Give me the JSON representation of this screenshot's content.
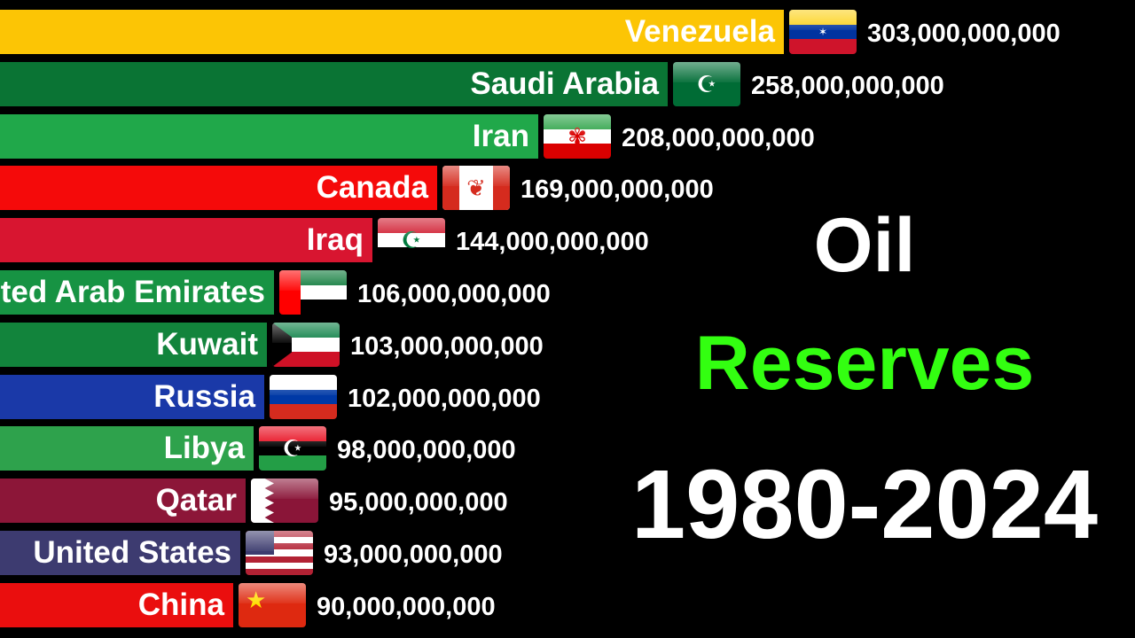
{
  "title": {
    "line1": "Oil",
    "line2": "Reserves",
    "line2_color": "#33ff11",
    "line3": "1980-2024"
  },
  "chart_data": {
    "type": "bar",
    "orientation": "horizontal",
    "categories": [
      "Venezuela",
      "Saudi Arabia",
      "Iran",
      "Canada",
      "Iraq",
      "United Arab Emirates",
      "Kuwait",
      "Russia",
      "Libya",
      "Qatar",
      "United States",
      "China"
    ],
    "values": [
      303000000000,
      258000000000,
      208000000000,
      169000000000,
      144000000000,
      106000000000,
      103000000000,
      102000000000,
      98000000000,
      95000000000,
      93000000000,
      90000000000
    ],
    "value_labels": [
      "303,000,000,000",
      "258,000,000,000",
      "208,000,000,000",
      "169,000,000,000",
      "144,000,000,000",
      "106,000,000,000",
      "103,000,000,000",
      "102,000,000,000",
      "98,000,000,000",
      "95,000,000,000",
      "93,000,000,000",
      "90,000,000,000"
    ],
    "bar_colors": [
      "#fcc505",
      "#0a7434",
      "#20a84a",
      "#f50a0a",
      "#d81530",
      "#179343",
      "#12843c",
      "#1a39a8",
      "#2ea24c",
      "#8c1638",
      "#3d3b70",
      "#ea0e0e"
    ],
    "flags": [
      {
        "name": "venezuela-flag",
        "stripes": [
          "#fcd116",
          "#0033a0",
          "#cf142b"
        ],
        "glyph": "✶",
        "glyph_color": "#ffffff"
      },
      {
        "name": "saudi-arabia-flag",
        "stripes": [
          "#006c35"
        ],
        "glyph": "☪",
        "glyph_color": "#ffffff"
      },
      {
        "name": "iran-flag",
        "stripes": [
          "#239f40",
          "#ffffff",
          "#da0000"
        ],
        "glyph": "✾",
        "glyph_color": "#da0000"
      },
      {
        "name": "canada-flag",
        "stripes": [
          "#ffffff"
        ],
        "glyph": "❦",
        "glyph_color": "#d52b1e"
      },
      {
        "name": "iraq-flag",
        "stripes": [
          "#ce1126",
          "#ffffff",
          "#000000"
        ],
        "glyph": "☪",
        "glyph_color": "#007a3d"
      },
      {
        "name": "uae-flag",
        "stripes": [
          "#00732f",
          "#ffffff",
          "#000000"
        ],
        "glyph": "",
        "glyph_color": "#ffffff"
      },
      {
        "name": "kuwait-flag",
        "stripes": [
          "#007a3d",
          "#ffffff",
          "#ce1126"
        ],
        "glyph": "",
        "glyph_color": "#000000"
      },
      {
        "name": "russia-flag",
        "stripes": [
          "#ffffff",
          "#0039a6",
          "#d52b1e"
        ],
        "glyph": "",
        "glyph_color": "#ffffff"
      },
      {
        "name": "libya-flag",
        "stripes": [
          "#e70013",
          "#000000",
          "#239e46"
        ],
        "glyph": "☪",
        "glyph_color": "#ffffff"
      },
      {
        "name": "qatar-flag",
        "stripes": [
          "#8a1538"
        ],
        "glyph": "",
        "glyph_color": "#ffffff"
      },
      {
        "name": "united-states-flag",
        "stripes": [
          "#b22234",
          "#ffffff",
          "#b22234",
          "#ffffff",
          "#b22234",
          "#ffffff",
          "#b22234"
        ],
        "glyph": "",
        "glyph_color": "#ffffff"
      },
      {
        "name": "china-flag",
        "stripes": [
          "#de2910"
        ],
        "glyph": "★",
        "glyph_color": "#ffde00"
      }
    ],
    "xlim": [
      0,
      303000000000
    ],
    "grid": false,
    "legend": "none"
  }
}
